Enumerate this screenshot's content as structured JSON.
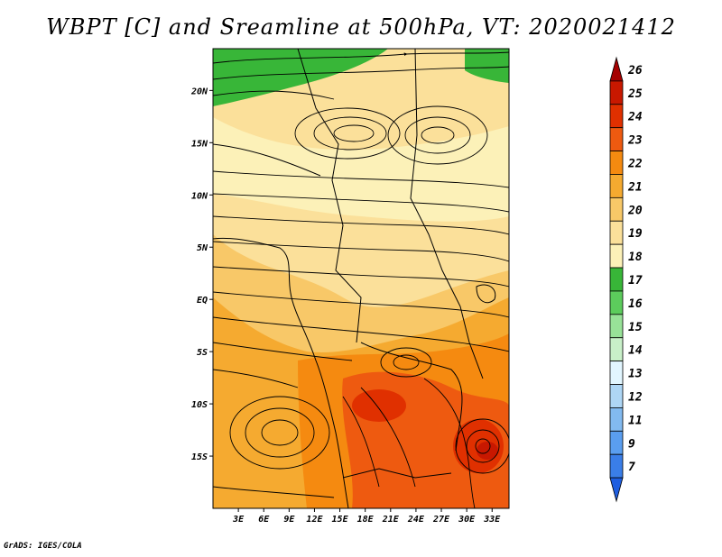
{
  "title": "WBPT [C] and Sreamline at 500hPa, VT: 2020021412",
  "footer": "GrADS: IGES/COLA",
  "chart_data": {
    "type": "filled-contour-map",
    "variable": "Wet-bulb potential temperature",
    "units": "C",
    "level": "500hPa",
    "valid_time": "2020021412",
    "overlay": "streamlines",
    "lon_range": [
      0,
      35
    ],
    "lat_range": [
      -20,
      24
    ],
    "lat_labels": [
      {
        "label": "20N",
        "lat": 20
      },
      {
        "label": "15N",
        "lat": 15
      },
      {
        "label": "10N",
        "lat": 10
      },
      {
        "label": "5N",
        "lat": 5
      },
      {
        "label": "EQ",
        "lat": 0
      },
      {
        "label": "5S",
        "lat": -5
      },
      {
        "label": "10S",
        "lat": -10
      },
      {
        "label": "15S",
        "lat": -15
      }
    ],
    "lon_labels": [
      {
        "label": "3E",
        "lon": 3
      },
      {
        "label": "6E",
        "lon": 6
      },
      {
        "label": "9E",
        "lon": 9
      },
      {
        "label": "12E",
        "lon": 12
      },
      {
        "label": "15E",
        "lon": 15
      },
      {
        "label": "18E",
        "lon": 18
      },
      {
        "label": "21E",
        "lon": 21
      },
      {
        "label": "24E",
        "lon": 24
      },
      {
        "label": "27E",
        "lon": 27
      },
      {
        "label": "30E",
        "lon": 30
      },
      {
        "label": "33E",
        "lon": 33
      }
    ],
    "colorbar": {
      "labels": [
        "26",
        "25",
        "24",
        "23",
        "22",
        "21",
        "20",
        "19",
        "18",
        "17",
        "16",
        "15",
        "14",
        "13",
        "12",
        "11",
        "9",
        "7"
      ],
      "colors": [
        "#a50000",
        "#c81800",
        "#e03000",
        "#ee5a10",
        "#f58a10",
        "#f5aa30",
        "#f8c868",
        "#fbe09a",
        "#fcf1b8",
        "#38b638",
        "#5ccc5c",
        "#98e298",
        "#c8f0c8",
        "#e2f6ff",
        "#aed6f5",
        "#82baf0",
        "#5a9ef0",
        "#3a7ee8",
        "#1e5ee0"
      ]
    },
    "regions": [
      {
        "name": "green-north",
        "value": 17
      },
      {
        "name": "pale-yellow-band",
        "value": 18.5
      },
      {
        "name": "yellow-central",
        "value": 19.5
      },
      {
        "name": "orange-south",
        "value": 21.5
      },
      {
        "name": "warm-core-southeast",
        "value": 24
      }
    ]
  }
}
